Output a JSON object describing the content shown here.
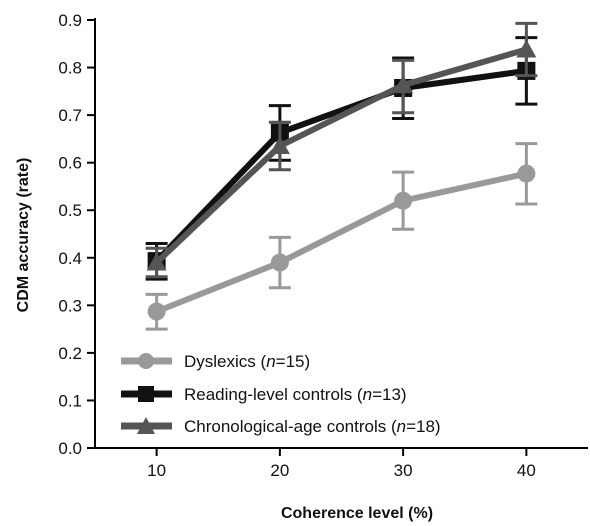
{
  "chart_data": {
    "type": "line",
    "xlabel": "Coherence level (%)",
    "ylabel": "CDM accuracy (rate)",
    "x": [
      10,
      20,
      30,
      40
    ],
    "xlim": [
      5,
      45
    ],
    "ylim": [
      0,
      0.9
    ],
    "yticks": [
      "0.0",
      "0.1",
      "0.2",
      "0.3",
      "0.4",
      "0.5",
      "0.6",
      "0.7",
      "0.8",
      "0.9"
    ],
    "yticks_values": [
      0,
      0.1,
      0.2,
      0.3,
      0.4,
      0.5,
      0.6,
      0.7,
      0.8,
      0.9
    ],
    "xticks": [
      "10",
      "20",
      "30",
      "40"
    ],
    "grid": false,
    "legend_position": "bottom-left",
    "series": [
      {
        "name": "Dyslexics",
        "n_label": "n",
        "n_value": "=15)",
        "marker": "circle",
        "color": "#999999",
        "values": [
          0.287,
          0.39,
          0.52,
          0.577
        ],
        "err_low": [
          0.25,
          0.337,
          0.46,
          0.513
        ],
        "err_high": [
          0.323,
          0.443,
          0.58,
          0.64
        ]
      },
      {
        "name": "Reading-level controls",
        "n_label": "n",
        "n_value": "=13)",
        "marker": "square",
        "color": "#111111",
        "values": [
          0.393,
          0.663,
          0.757,
          0.793
        ],
        "err_low": [
          0.355,
          0.605,
          0.693,
          0.723
        ],
        "err_high": [
          0.43,
          0.72,
          0.82,
          0.863
        ]
      },
      {
        "name": "Chronological-age controls",
        "n_label": "n",
        "n_value": "=18)",
        "marker": "triangle",
        "color": "#555555",
        "values": [
          0.39,
          0.635,
          0.763,
          0.838
        ],
        "err_low": [
          0.36,
          0.585,
          0.705,
          0.783
        ],
        "err_high": [
          0.42,
          0.685,
          0.815,
          0.893
        ]
      }
    ]
  }
}
